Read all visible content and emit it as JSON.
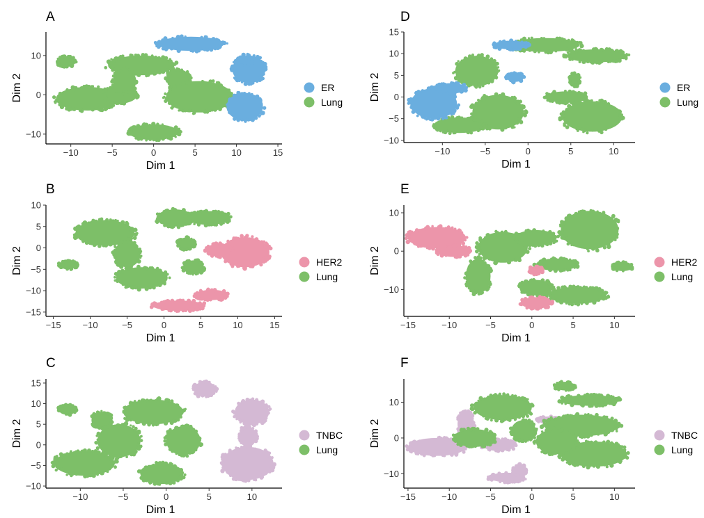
{
  "colors": {
    "ER": "#6aaedf",
    "HER2": "#ec95aa",
    "TNBC": "#d4b9d4",
    "Lung": "#7dbf68",
    "axis": "#000000"
  },
  "chart_data": [
    {
      "panel": "A",
      "type": "scatter",
      "xlabel": "Dim 1",
      "ylabel": "Dim 2",
      "xlim": [
        -13,
        15.5
      ],
      "ylim": [
        -12.5,
        16
      ],
      "xticks": [
        -10,
        -5,
        0,
        5,
        10,
        15
      ],
      "yticks": [
        -10,
        0,
        10
      ],
      "legend": [
        "ER",
        "Lung"
      ],
      "series": [
        {
          "name": "Lung",
          "clusters": [
            {
              "x": -10.5,
              "y": 8.5,
              "rx": 1.1,
              "ry": 1.3
            },
            {
              "x": -8.0,
              "y": -1.0,
              "rx": 3.8,
              "ry": 3.0
            },
            {
              "x": -4.0,
              "y": 0.0,
              "rx": 2.0,
              "ry": 2.2
            },
            {
              "x": -1.5,
              "y": 7.5,
              "rx": 4.0,
              "ry": 2.5
            },
            {
              "x": -3.5,
              "y": 3.5,
              "rx": 1.4,
              "ry": 3.0
            },
            {
              "x": 3.0,
              "y": 4.0,
              "rx": 1.4,
              "ry": 2.5
            },
            {
              "x": 5.5,
              "y": -0.5,
              "rx": 4.0,
              "ry": 4.0
            },
            {
              "x": 0.0,
              "y": -9.5,
              "rx": 3.0,
              "ry": 2.0
            }
          ]
        },
        {
          "name": "ER",
          "clusters": [
            {
              "x": 4.5,
              "y": 13.0,
              "rx": 4.0,
              "ry": 1.8
            },
            {
              "x": 11.5,
              "y": 6.5,
              "rx": 2.0,
              "ry": 3.5
            },
            {
              "x": 11.0,
              "y": -3.0,
              "rx": 2.2,
              "ry": 3.5
            },
            {
              "x": 11.0,
              "y": 8.5,
              "rx": 1.0,
              "ry": 1.0
            }
          ]
        }
      ]
    },
    {
      "panel": "B",
      "type": "scatter",
      "xlabel": "Dim 1",
      "ylabel": "Dim 2",
      "xlim": [
        -16,
        16
      ],
      "ylim": [
        -16,
        10
      ],
      "xticks": [
        -15,
        -10,
        -5,
        0,
        5,
        10,
        15
      ],
      "yticks": [
        -15,
        -10,
        -5,
        0,
        5,
        10
      ],
      "legend": [
        "HER2",
        "Lung"
      ],
      "series": [
        {
          "name": "Lung",
          "clusters": [
            {
              "x": -13.0,
              "y": -4.0,
              "rx": 1.2,
              "ry": 1.0
            },
            {
              "x": -8.0,
              "y": 3.5,
              "rx": 4.0,
              "ry": 3.0
            },
            {
              "x": -5.0,
              "y": -1.5,
              "rx": 1.8,
              "ry": 3.0
            },
            {
              "x": -3.0,
              "y": -7.0,
              "rx": 3.5,
              "ry": 2.5
            },
            {
              "x": 1.5,
              "y": 7.0,
              "rx": 2.5,
              "ry": 2.0
            },
            {
              "x": 6.0,
              "y": 7.0,
              "rx": 3.0,
              "ry": 1.6
            },
            {
              "x": 4.0,
              "y": -4.5,
              "rx": 1.4,
              "ry": 1.6
            },
            {
              "x": 3.0,
              "y": 1.0,
              "rx": 1.2,
              "ry": 1.4
            }
          ]
        },
        {
          "name": "HER2",
          "clusters": [
            {
              "x": 11.0,
              "y": -1.0,
              "rx": 3.3,
              "ry": 3.5
            },
            {
              "x": 7.5,
              "y": -0.5,
              "rx": 1.8,
              "ry": 1.5
            },
            {
              "x": 2.0,
              "y": -13.5,
              "rx": 3.5,
              "ry": 1.2
            },
            {
              "x": 6.5,
              "y": -11.0,
              "rx": 2.2,
              "ry": 1.2
            }
          ]
        }
      ]
    },
    {
      "panel": "C",
      "type": "scatter",
      "xlabel": "Dim 1",
      "ylabel": "Dim 2",
      "xlim": [
        -14,
        13.5
      ],
      "ylim": [
        -10.5,
        16
      ],
      "xticks": [
        -10,
        -5,
        0,
        5,
        10
      ],
      "yticks": [
        -10,
        -5,
        0,
        5,
        10,
        15
      ],
      "legend": [
        "TNBC",
        "Lung"
      ],
      "series": [
        {
          "name": "Lung",
          "clusters": [
            {
              "x": -11.5,
              "y": 8.5,
              "rx": 1.0,
              "ry": 1.2
            },
            {
              "x": -9.5,
              "y": -4.5,
              "rx": 3.5,
              "ry": 3.0
            },
            {
              "x": -7.5,
              "y": 6.0,
              "rx": 1.2,
              "ry": 2.0
            },
            {
              "x": -5.5,
              "y": 1.0,
              "rx": 2.5,
              "ry": 4.0
            },
            {
              "x": -1.5,
              "y": 8.0,
              "rx": 3.5,
              "ry": 3.0
            },
            {
              "x": 2.0,
              "y": 1.0,
              "rx": 2.0,
              "ry": 3.5
            },
            {
              "x": -0.5,
              "y": -7.0,
              "rx": 2.5,
              "ry": 2.5
            }
          ]
        },
        {
          "name": "TNBC",
          "clusters": [
            {
              "x": 4.5,
              "y": 13.5,
              "rx": 1.3,
              "ry": 1.8
            },
            {
              "x": 10.0,
              "y": 8.0,
              "rx": 2.0,
              "ry": 3.0
            },
            {
              "x": 9.5,
              "y": -4.5,
              "rx": 3.0,
              "ry": 4.0
            },
            {
              "x": 9.5,
              "y": 2.0,
              "rx": 1.0,
              "ry": 2.5
            }
          ]
        }
      ]
    },
    {
      "panel": "D",
      "type": "scatter",
      "xlabel": "Dim 1",
      "ylabel": "Dim 2",
      "xlim": [
        -14.5,
        12.5
      ],
      "ylim": [
        -10.5,
        15
      ],
      "xticks": [
        -10,
        -5,
        0,
        5,
        10
      ],
      "yticks": [
        -10,
        -5,
        0,
        5,
        10,
        15
      ],
      "legend": [
        "ER",
        "Lung"
      ],
      "series": [
        {
          "name": "Lung",
          "clusters": [
            {
              "x": -6.0,
              "y": 6.0,
              "rx": 2.5,
              "ry": 3.5
            },
            {
              "x": -3.5,
              "y": -3.5,
              "rx": 3.0,
              "ry": 4.0
            },
            {
              "x": -8.0,
              "y": -6.5,
              "rx": 3.0,
              "ry": 1.8
            },
            {
              "x": 2.0,
              "y": 12.0,
              "rx": 4.0,
              "ry": 1.6
            },
            {
              "x": 8.0,
              "y": 9.5,
              "rx": 3.5,
              "ry": 1.5
            },
            {
              "x": 7.5,
              "y": -4.5,
              "rx": 3.5,
              "ry": 3.5
            },
            {
              "x": 4.5,
              "y": 0.0,
              "rx": 2.5,
              "ry": 1.3
            },
            {
              "x": 5.5,
              "y": 4.0,
              "rx": 0.6,
              "ry": 1.5
            }
          ]
        },
        {
          "name": "ER",
          "clusters": [
            {
              "x": -11.0,
              "y": -1.5,
              "rx": 2.7,
              "ry": 3.5
            },
            {
              "x": -9.0,
              "y": 2.0,
              "rx": 1.8,
              "ry": 1.2
            },
            {
              "x": -2.0,
              "y": 12.0,
              "rx": 2.0,
              "ry": 1.0
            },
            {
              "x": -1.5,
              "y": 4.5,
              "rx": 1.0,
              "ry": 1.0
            }
          ]
        }
      ]
    },
    {
      "panel": "E",
      "type": "scatter",
      "xlabel": "Dim 1",
      "ylabel": "Dim 2",
      "xlim": [
        -15.5,
        12.5
      ],
      "ylim": [
        -17,
        12
      ],
      "xticks": [
        -15,
        -10,
        -5,
        0,
        5,
        10
      ],
      "yticks": [
        -10,
        0,
        10
      ],
      "legend": [
        "HER2",
        "Lung"
      ],
      "series": [
        {
          "name": "Lung",
          "clusters": [
            {
              "x": -6.5,
              "y": -6.5,
              "rx": 1.5,
              "ry": 4.5
            },
            {
              "x": -3.5,
              "y": 1.0,
              "rx": 3.0,
              "ry": 4.0
            },
            {
              "x": 0.5,
              "y": 3.5,
              "rx": 2.5,
              "ry": 2.0
            },
            {
              "x": 7.0,
              "y": 5.5,
              "rx": 3.5,
              "ry": 5.0
            },
            {
              "x": 3.0,
              "y": -3.5,
              "rx": 2.5,
              "ry": 1.6
            },
            {
              "x": 0.5,
              "y": -9.5,
              "rx": 2.0,
              "ry": 2.0
            },
            {
              "x": 5.5,
              "y": -11.5,
              "rx": 3.5,
              "ry": 2.2
            },
            {
              "x": 11.0,
              "y": -4.0,
              "rx": 1.2,
              "ry": 1.2
            }
          ]
        },
        {
          "name": "HER2",
          "clusters": [
            {
              "x": -11.5,
              "y": 3.5,
              "rx": 3.5,
              "ry": 2.8
            },
            {
              "x": -9.5,
              "y": 0.0,
              "rx": 2.0,
              "ry": 1.5
            },
            {
              "x": 0.5,
              "y": -13.5,
              "rx": 1.8,
              "ry": 1.5
            },
            {
              "x": 0.5,
              "y": -5.0,
              "rx": 0.8,
              "ry": 1.0
            }
          ]
        }
      ]
    },
    {
      "panel": "F",
      "type": "scatter",
      "xlabel": "Dim 1",
      "ylabel": "Dim 2",
      "xlim": [
        -15.5,
        12.5
      ],
      "ylim": [
        -14,
        16.5
      ],
      "xticks": [
        -15,
        -10,
        -5,
        0,
        5,
        10
      ],
      "yticks": [
        -10,
        0,
        10
      ],
      "legend": [
        "TNBC",
        "Lung"
      ],
      "series": [
        {
          "name": "TNBC",
          "clusters": [
            {
              "x": -11.5,
              "y": -2.5,
              "rx": 3.5,
              "ry": 2.5
            },
            {
              "x": -8.0,
              "y": 4.0,
              "rx": 1.0,
              "ry": 3.5
            },
            {
              "x": -4.0,
              "y": -2.0,
              "rx": 2.0,
              "ry": 1.6
            },
            {
              "x": -3.0,
              "y": -11.0,
              "rx": 2.2,
              "ry": 1.3
            },
            {
              "x": -1.5,
              "y": -9.0,
              "rx": 0.8,
              "ry": 1.5
            },
            {
              "x": 2.0,
              "y": 5.0,
              "rx": 1.3,
              "ry": 1.0
            }
          ]
        },
        {
          "name": "Lung",
          "clusters": [
            {
              "x": -7.0,
              "y": 0.0,
              "rx": 2.5,
              "ry": 2.5
            },
            {
              "x": -3.5,
              "y": 8.5,
              "rx": 3.5,
              "ry": 3.5
            },
            {
              "x": -1.0,
              "y": 2.0,
              "rx": 1.5,
              "ry": 3.0
            },
            {
              "x": 4.0,
              "y": 14.5,
              "rx": 1.2,
              "ry": 1.2
            },
            {
              "x": 7.0,
              "y": 10.5,
              "rx": 3.5,
              "ry": 1.5
            },
            {
              "x": 6.0,
              "y": 3.5,
              "rx": 4.5,
              "ry": 3.0
            },
            {
              "x": 7.5,
              "y": -4.5,
              "rx": 4.0,
              "ry": 3.5
            },
            {
              "x": 3.0,
              "y": -1.0,
              "rx": 2.5,
              "ry": 3.5
            }
          ]
        }
      ]
    }
  ]
}
